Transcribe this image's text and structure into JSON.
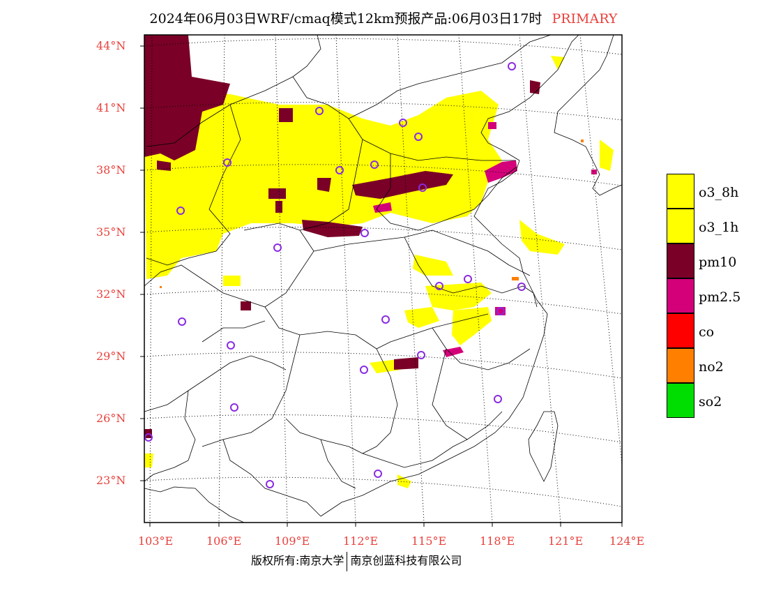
{
  "title": {
    "main": "2024年06月03日WRF/cmaq模式12km预报产品:06月03日17时",
    "tag": "PRIMARY"
  },
  "lat_labels": [
    "44°N",
    "41°N",
    "38°N",
    "35°N",
    "32°N",
    "29°N",
    "26°N",
    "23°N"
  ],
  "lon_labels": [
    "103°E",
    "106°E",
    "109°E",
    "112°E",
    "115°E",
    "118°E",
    "121°E",
    "124°E"
  ],
  "legend": [
    {
      "label": "o3_8h",
      "color": "#ffff00"
    },
    {
      "label": "o3_1h",
      "color": "#ffff00"
    },
    {
      "label": "pm10",
      "color": "#7a0028"
    },
    {
      "label": "pm2.5",
      "color": "#d4007a"
    },
    {
      "label": "co",
      "color": "#ff0000"
    },
    {
      "label": "no2",
      "color": "#ff7f00"
    },
    {
      "label": "so2",
      "color": "#00dd00"
    }
  ],
  "footer": {
    "left": "版权所有:南京大学",
    "right": "南京创蓝科技有限公司"
  },
  "colors": {
    "accent": "#e8413c",
    "o3": "#ffff00",
    "pm10": "#7a0028",
    "pm25": "#d4007a",
    "station": "#8a2be2"
  }
}
